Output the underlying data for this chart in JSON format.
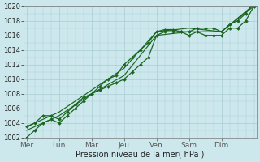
{
  "background_color": "#cce8ec",
  "grid_color": "#aaccd4",
  "line_color": "#1a6620",
  "xlabel": "Pression niveau de la mer( hPa )",
  "ylim": [
    1002,
    1020
  ],
  "yticks": [
    1002,
    1004,
    1006,
    1008,
    1010,
    1012,
    1014,
    1016,
    1018,
    1020
  ],
  "day_labels": [
    "Mer",
    "Lun",
    "Mar",
    "Jeu",
    "Ven",
    "Sam",
    "Dim"
  ],
  "day_positions": [
    0,
    24,
    48,
    72,
    96,
    120,
    144
  ],
  "xlim": [
    -2,
    170
  ],
  "line1_marked": {
    "x": [
      0,
      6,
      12,
      18,
      24,
      30,
      36,
      42,
      48,
      54,
      60,
      66,
      72,
      78,
      84,
      90,
      96,
      102,
      108,
      114,
      120,
      126,
      132,
      138,
      144,
      150,
      156,
      162,
      168
    ],
    "y": [
      1002,
      1003,
      1004,
      1004.5,
      1004,
      1005,
      1006,
      1007,
      1008,
      1008.5,
      1009,
      1009.5,
      1010,
      1011,
      1012,
      1013,
      1016,
      1016.5,
      1016.5,
      1016.5,
      1016,
      1016.5,
      1016,
      1016,
      1016,
      1017,
      1017,
      1018,
      1020
    ]
  },
  "line2": {
    "x": [
      0,
      24,
      48,
      72,
      96,
      120,
      144,
      168
    ],
    "y": [
      1003,
      1005,
      1008,
      1010.5,
      1016,
      1016.5,
      1016.5,
      1020
    ]
  },
  "line3": {
    "x": [
      0,
      24,
      48,
      72,
      96,
      120,
      144,
      168
    ],
    "y": [
      1003.5,
      1005.5,
      1008.5,
      1011.5,
      1016.5,
      1017,
      1016.5,
      1020.2
    ]
  },
  "line4_marked": {
    "x": [
      0,
      6,
      12,
      18,
      24,
      30,
      36,
      42,
      48,
      54,
      60,
      66,
      72,
      78,
      84,
      90,
      96,
      102,
      108,
      114,
      120,
      126,
      132,
      138,
      144,
      150,
      156,
      162,
      168
    ],
    "y": [
      1003.5,
      1004,
      1005,
      1005,
      1004.5,
      1005.5,
      1006.5,
      1007.5,
      1008,
      1009,
      1010,
      1010.5,
      1012,
      1013,
      1014,
      1015,
      1016.5,
      1016.8,
      1016.8,
      1016.5,
      1016.5,
      1017,
      1017,
      1017,
      1016.5,
      1017.5,
      1018,
      1019,
      1020.5
    ]
  }
}
